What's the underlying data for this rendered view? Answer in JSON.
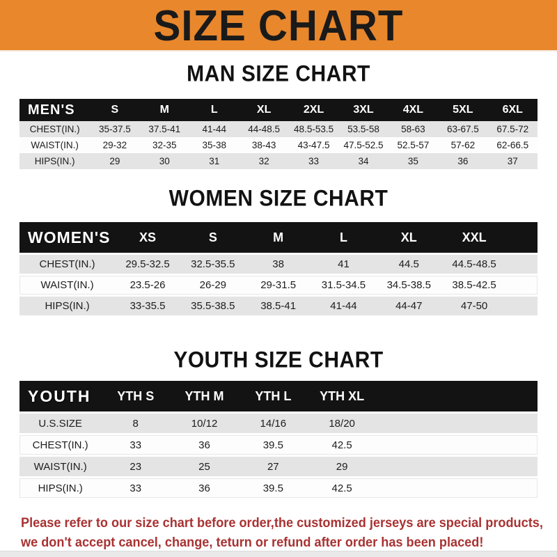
{
  "colors": {
    "banner_bg": "#E8872C",
    "header_bar": "#131313",
    "row_shaded": "#E4E4E4",
    "disclaimer_red": "#A93232"
  },
  "banner": {
    "title": "SIZE CHART"
  },
  "sections": [
    {
      "heading": "MAN SIZE CHART",
      "label": "MEN'S",
      "columns": [
        "S",
        "M",
        "L",
        "XL",
        "2XL",
        "3XL",
        "4XL",
        "5XL",
        "6XL"
      ],
      "rows": [
        {
          "label": "CHEST(IN.)",
          "values": [
            "35-37.5",
            "37.5-41",
            "41-44",
            "44-48.5",
            "48.5-53.5",
            "53.5-58",
            "58-63",
            "63-67.5",
            "67.5-72"
          ]
        },
        {
          "label": "WAIST(IN.)",
          "values": [
            "29-32",
            "32-35",
            "35-38",
            "38-43",
            "43-47.5",
            "47.5-52.5",
            "52.5-57",
            "57-62",
            "62-66.5"
          ]
        },
        {
          "label": "HIPS(IN.)",
          "values": [
            "29",
            "30",
            "31",
            "32",
            "33",
            "34",
            "35",
            "36",
            "37"
          ]
        }
      ]
    },
    {
      "heading": "WOMEN SIZE CHART",
      "label": "WOMEN'S",
      "columns": [
        "XS",
        "S",
        "M",
        "L",
        "XL",
        "XXL"
      ],
      "rows": [
        {
          "label": "CHEST(IN.)",
          "values": [
            "29.5-32.5",
            "32.5-35.5",
            "38",
            "41",
            "44.5",
            "44.5-48.5"
          ]
        },
        {
          "label": "WAIST(IN.)",
          "values": [
            "23.5-26",
            "26-29",
            "29-31.5",
            "31.5-34.5",
            "34.5-38.5",
            "38.5-42.5"
          ]
        },
        {
          "label": "HIPS(IN.)",
          "values": [
            "33-35.5",
            "35.5-38.5",
            "38.5-41",
            "41-44",
            "44-47",
            "47-50"
          ]
        }
      ]
    },
    {
      "heading": "YOUTH SIZE CHART",
      "label": "YOUTH",
      "columns": [
        "YTH S",
        "YTH M",
        "YTH L",
        "YTH XL"
      ],
      "rows": [
        {
          "label": "U.S.SIZE",
          "values": [
            "8",
            "10/12",
            "14/16",
            "18/20"
          ]
        },
        {
          "label": "CHEST(IN.)",
          "values": [
            "33",
            "36",
            "39.5",
            "42.5"
          ]
        },
        {
          "label": "WAIST(IN.)",
          "values": [
            "23",
            "25",
            "27",
            "29"
          ]
        },
        {
          "label": "HIPS(IN.)",
          "values": [
            "33",
            "36",
            "39.5",
            "42.5"
          ]
        }
      ]
    }
  ],
  "disclaimer": {
    "line1": "Please refer to our size chart before order,the customized jerseys are special products,",
    "line2": "we don't accept cancel, change, teturn or refund after order has been placed!"
  }
}
